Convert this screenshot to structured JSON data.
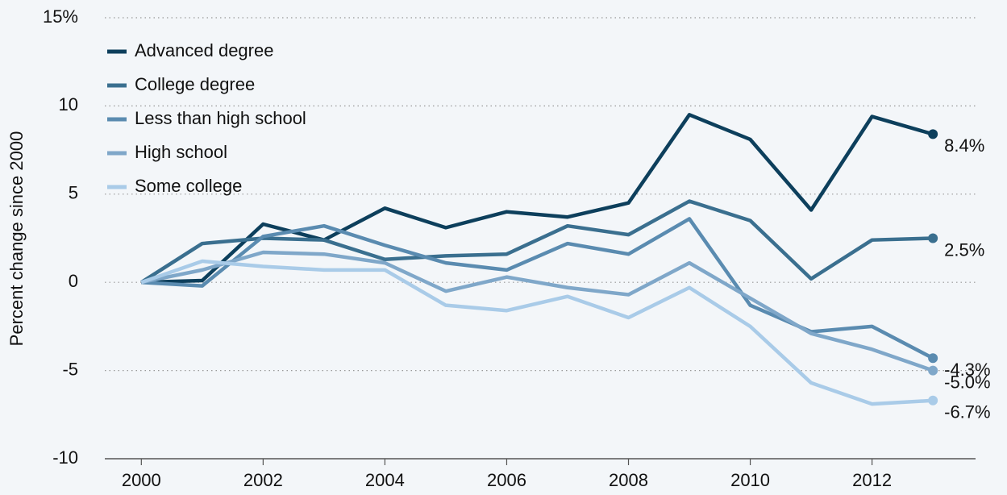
{
  "chart_data": {
    "type": "line",
    "y_label": "Percent change since 2000",
    "x": [
      2000,
      2001,
      2002,
      2003,
      2004,
      2005,
      2006,
      2007,
      2008,
      2009,
      2010,
      2011,
      2012,
      2013
    ],
    "xlim": [
      1999.4,
      2013.7
    ],
    "xticks": [
      2000,
      2002,
      2004,
      2006,
      2008,
      2010,
      2012
    ],
    "ylim": [
      -10,
      15
    ],
    "yticks": [
      {
        "value": 15,
        "label": "15%"
      },
      10,
      5,
      0,
      -5,
      -10
    ],
    "grid": true,
    "legend": "top-left",
    "series": [
      {
        "name": "Advanced degree",
        "color": "#0d3f5c",
        "values": [
          0,
          0.1,
          3.3,
          2.4,
          4.2,
          3.1,
          4.0,
          3.7,
          4.5,
          9.5,
          8.1,
          4.1,
          9.4,
          8.4
        ],
        "value_labels": [
          null,
          null,
          null,
          null,
          null,
          null,
          null,
          null,
          null,
          null,
          null,
          null,
          null,
          "8.4%"
        ]
      },
      {
        "name": "College degree",
        "color": "#3a6f8f",
        "values": [
          0,
          2.2,
          2.5,
          2.4,
          1.3,
          1.5,
          1.6,
          3.2,
          2.7,
          4.6,
          3.5,
          0.2,
          2.4,
          2.5
        ],
        "value_labels": [
          null,
          null,
          null,
          null,
          null,
          null,
          null,
          null,
          null,
          null,
          null,
          null,
          null,
          "2.5%"
        ]
      },
      {
        "name": "Less than high school",
        "color": "#5a8bb0",
        "values": [
          0,
          -0.2,
          2.6,
          3.2,
          2.1,
          1.1,
          0.7,
          2.2,
          1.6,
          3.6,
          -1.3,
          -2.8,
          -2.5,
          -4.3
        ],
        "value_labels": [
          null,
          null,
          null,
          null,
          null,
          null,
          null,
          null,
          null,
          null,
          null,
          null,
          null,
          "-4.3%"
        ]
      },
      {
        "name": "High school",
        "color": "#7fa7c9",
        "values": [
          0,
          0.7,
          1.7,
          1.6,
          1.1,
          -0.5,
          0.3,
          -0.3,
          -0.7,
          1.1,
          -0.9,
          -2.9,
          -3.8,
          -5.0
        ],
        "value_labels": [
          null,
          null,
          null,
          null,
          null,
          null,
          null,
          null,
          null,
          null,
          null,
          null,
          null,
          "-5.0%"
        ]
      },
      {
        "name": "Some college",
        "color": "#a9cbe8",
        "values": [
          0,
          1.2,
          0.9,
          0.7,
          0.7,
          -1.3,
          -1.6,
          -0.8,
          -2.0,
          -0.3,
          -2.5,
          -5.7,
          -6.9,
          -6.7
        ],
        "value_labels": [
          null,
          null,
          null,
          null,
          null,
          null,
          null,
          null,
          null,
          null,
          null,
          null,
          null,
          "-6.7%"
        ]
      }
    ]
  }
}
